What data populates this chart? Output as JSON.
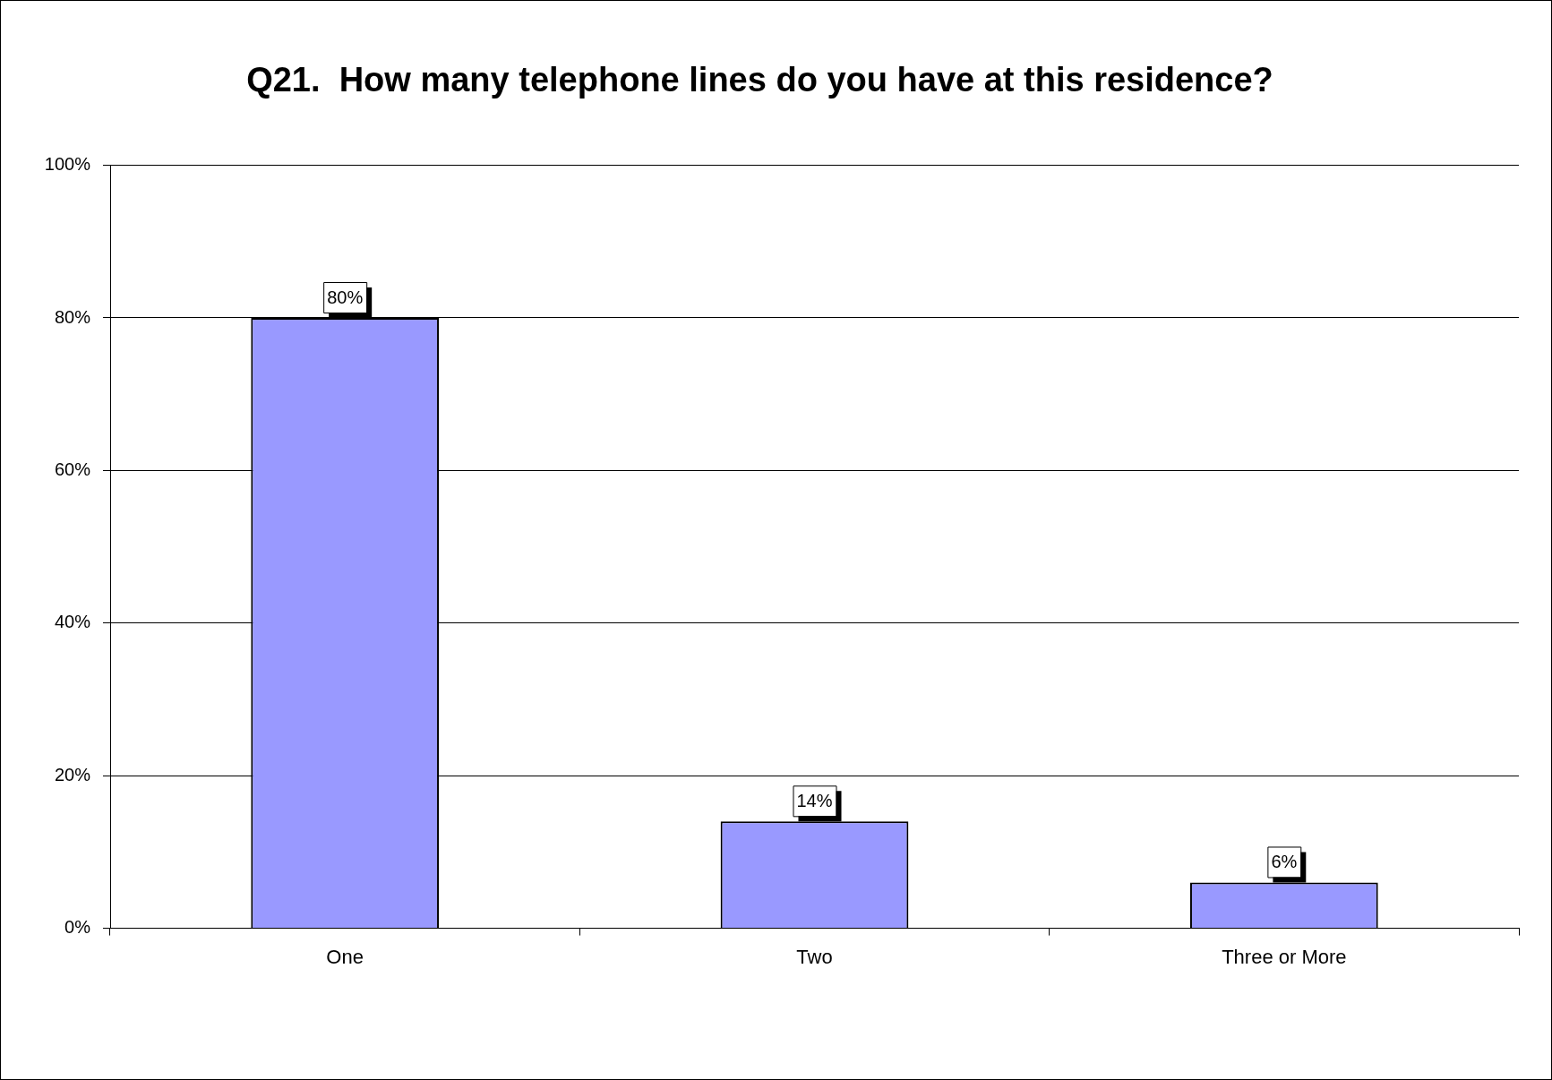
{
  "chart_data": {
    "type": "bar",
    "title": "Q21.  How many telephone lines do you have at this residence?",
    "categories": [
      "One",
      "Two",
      "Three or More"
    ],
    "values": [
      80,
      14,
      6
    ],
    "value_labels": [
      "80%",
      "14%",
      "6%"
    ],
    "color": "#9999ff",
    "ylim": [
      0,
      100
    ],
    "yticks": [
      {
        "value": 0,
        "label": "0%"
      },
      {
        "value": 20,
        "label": "20%"
      },
      {
        "value": 40,
        "label": "40%"
      },
      {
        "value": 60,
        "label": "60%"
      },
      {
        "value": 80,
        "label": "80%"
      },
      {
        "value": 100,
        "label": "100%"
      }
    ],
    "grid": "y",
    "legend": false
  }
}
